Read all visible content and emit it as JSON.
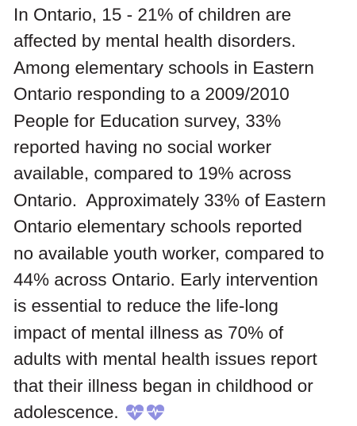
{
  "paragraph": {
    "lines": [
      "In Ontario, 15 - 21% of children are",
      "affected by mental health disorders.",
      "Among elementary schools in Eastern",
      "Ontario responding to a 2009/2010",
      "People for Education survey, 33%",
      "reported having no social worker",
      "available, compared to 19% across",
      "Ontario.  Approximately 33% of Eastern",
      "Ontario elementary schools reported",
      "no available youth worker, compared to",
      "44% across Ontario. Early intervention",
      "is essential to reduce the life-long",
      "impact of mental illness as 70% of",
      "adults with mental health issues report",
      "that their illness began in childhood or",
      "adolescence."
    ]
  }
}
